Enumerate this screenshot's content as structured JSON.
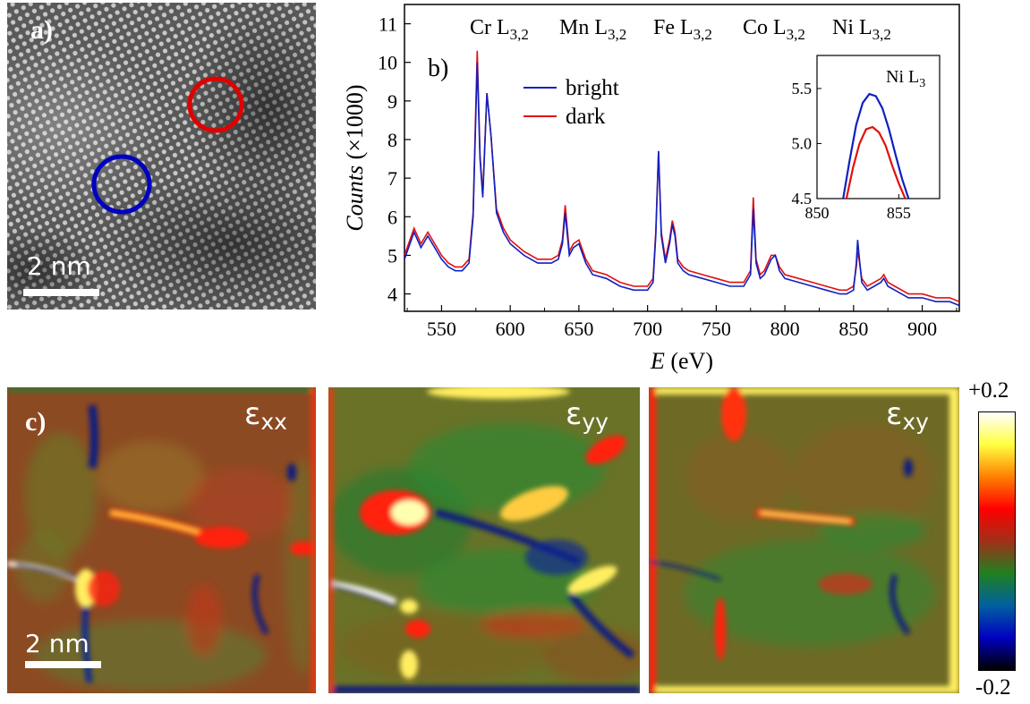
{
  "panel_a": {
    "label": "a)",
    "scale_bar": "2 nm",
    "circles": [
      {
        "name": "red",
        "color": "#e00000"
      },
      {
        "name": "blue",
        "color": "#0000c0"
      }
    ]
  },
  "chart_data": [
    {
      "type": "line",
      "label": "b)",
      "title": "",
      "xlabel": "E (eV)",
      "ylabel": "Counts (×1000)",
      "xlim": [
        523,
        927
      ],
      "ylim": [
        3.55,
        11.5
      ],
      "x_ticks": [
        550,
        600,
        650,
        700,
        750,
        800,
        850,
        900
      ],
      "y_ticks": [
        4,
        5,
        6,
        7,
        8,
        9,
        10,
        11
      ],
      "edge_labels": [
        {
          "element": "Cr",
          "edge": "L",
          "sub": "3,2"
        },
        {
          "element": "Mn",
          "edge": "L",
          "sub": "3,2"
        },
        {
          "element": "Fe",
          "edge": "L",
          "sub": "3,2"
        },
        {
          "element": "Co",
          "edge": "L",
          "sub": "3,2"
        },
        {
          "element": "Ni",
          "edge": "L",
          "sub": "3,2"
        }
      ],
      "legend_position": "upper-middle",
      "series": [
        {
          "name": "bright",
          "color": "#1020c0",
          "x": [
            523,
            530,
            535,
            540,
            545,
            550,
            555,
            560,
            565,
            570,
            573,
            576,
            578,
            580,
            583,
            586,
            590,
            595,
            600,
            610,
            620,
            630,
            635,
            638,
            640,
            643,
            646,
            650,
            655,
            660,
            670,
            680,
            690,
            700,
            704,
            706,
            708,
            710,
            713,
            716,
            718,
            720,
            722,
            726,
            730,
            740,
            750,
            760,
            770,
            775,
            777,
            779,
            782,
            785,
            790,
            793,
            796,
            800,
            810,
            820,
            830,
            840,
            845,
            850,
            852,
            853,
            854,
            856,
            860,
            865,
            870,
            872,
            875,
            880,
            890,
            900,
            910,
            920,
            927
          ],
          "y": [
            4.9,
            5.6,
            5.2,
            5.5,
            5.2,
            4.9,
            4.7,
            4.6,
            4.6,
            4.8,
            6.0,
            10.0,
            7.5,
            6.5,
            9.2,
            8.1,
            6.1,
            5.6,
            5.3,
            5.0,
            4.8,
            4.8,
            4.9,
            5.3,
            6.1,
            5.0,
            5.2,
            5.3,
            4.8,
            4.5,
            4.4,
            4.2,
            4.1,
            4.1,
            4.3,
            5.5,
            7.7,
            5.5,
            4.8,
            5.3,
            5.8,
            5.5,
            4.8,
            4.6,
            4.5,
            4.4,
            4.3,
            4.2,
            4.2,
            4.5,
            6.2,
            4.8,
            4.4,
            4.5,
            4.9,
            5.0,
            4.6,
            4.4,
            4.3,
            4.2,
            4.1,
            4.0,
            4.0,
            4.1,
            4.8,
            5.4,
            5.0,
            4.3,
            4.1,
            4.2,
            4.3,
            4.4,
            4.2,
            4.1,
            3.9,
            3.9,
            3.8,
            3.8,
            3.7
          ]
        },
        {
          "name": "dark",
          "color": "#e01010",
          "x": [
            523,
            530,
            535,
            540,
            545,
            550,
            555,
            560,
            565,
            570,
            573,
            576,
            578,
            580,
            583,
            586,
            590,
            595,
            600,
            610,
            620,
            630,
            635,
            638,
            640,
            643,
            646,
            650,
            655,
            660,
            670,
            680,
            690,
            700,
            704,
            706,
            708,
            710,
            713,
            716,
            718,
            720,
            722,
            726,
            730,
            740,
            750,
            760,
            770,
            775,
            777,
            779,
            782,
            785,
            790,
            793,
            796,
            800,
            810,
            820,
            830,
            840,
            845,
            850,
            852,
            853,
            854,
            856,
            860,
            865,
            870,
            872,
            875,
            880,
            890,
            900,
            910,
            920,
            927
          ],
          "y": [
            5.0,
            5.7,
            5.3,
            5.6,
            5.3,
            5.0,
            4.8,
            4.7,
            4.7,
            4.9,
            6.1,
            10.3,
            7.6,
            6.6,
            9.2,
            8.1,
            6.2,
            5.7,
            5.4,
            5.1,
            4.9,
            4.9,
            5.0,
            5.4,
            6.3,
            5.1,
            5.3,
            5.4,
            4.9,
            4.6,
            4.5,
            4.3,
            4.2,
            4.2,
            4.4,
            5.6,
            7.7,
            5.6,
            4.9,
            5.4,
            5.9,
            5.6,
            4.9,
            4.7,
            4.6,
            4.5,
            4.4,
            4.3,
            4.3,
            4.6,
            6.5,
            4.9,
            4.5,
            4.6,
            5.0,
            5.0,
            4.7,
            4.5,
            4.4,
            4.3,
            4.2,
            4.1,
            4.1,
            4.2,
            4.7,
            5.1,
            4.9,
            4.4,
            4.2,
            4.3,
            4.4,
            4.5,
            4.3,
            4.2,
            4.0,
            4.0,
            3.9,
            3.9,
            3.8
          ]
        }
      ]
    },
    {
      "type": "line",
      "label": "Ni L3",
      "xlabel": "",
      "ylabel": "",
      "xlim": [
        850,
        857.5
      ],
      "ylim": [
        4.5,
        5.8
      ],
      "x_ticks": [
        850,
        855
      ],
      "y_ticks": [
        4.5,
        5.0,
        5.5
      ],
      "legend_position": "none",
      "series": [
        {
          "name": "bright",
          "color": "#1020c0",
          "x": [
            851.6,
            852.0,
            852.4,
            852.8,
            853.2,
            853.6,
            854.0,
            854.4,
            854.8,
            855.2,
            855.6
          ],
          "y": [
            4.5,
            4.85,
            5.17,
            5.37,
            5.45,
            5.43,
            5.32,
            5.13,
            4.9,
            4.68,
            4.5
          ]
        },
        {
          "name": "dark",
          "color": "#e01010",
          "x": [
            851.8,
            852.2,
            852.6,
            853.0,
            853.4,
            853.8,
            854.2,
            854.6,
            855.0,
            855.4
          ],
          "y": [
            4.5,
            4.78,
            5.0,
            5.13,
            5.15,
            5.1,
            4.98,
            4.8,
            4.64,
            4.5
          ]
        }
      ]
    },
    {
      "type": "heatmap",
      "panels": [
        {
          "name": "exx",
          "symbol": "ε",
          "sub": "xx"
        },
        {
          "name": "eyy",
          "symbol": "ε",
          "sub": "yy"
        },
        {
          "name": "exy",
          "symbol": "ε",
          "sub": "xy"
        }
      ],
      "label": "c)",
      "scale_bar": "2 nm",
      "colorbar": {
        "max_label": "+0.2",
        "min_label": "-0.2",
        "range": [
          -0.2,
          0.2
        ],
        "colors": [
          "#ffffff",
          "#ffff40",
          "#ff8000",
          "#ff0000",
          "#a03018",
          "#208020",
          "#0060a0",
          "#0000c0",
          "#000000"
        ]
      }
    }
  ]
}
